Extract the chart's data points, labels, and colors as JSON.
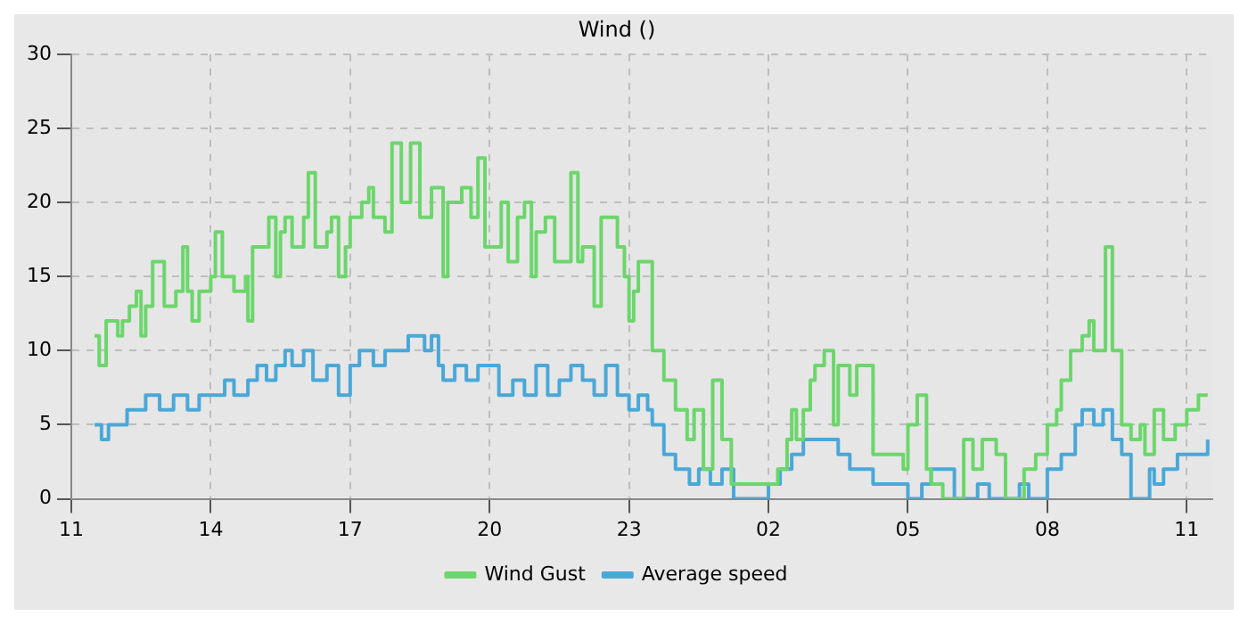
{
  "chart_data": {
    "type": "step",
    "title": "Wind ()",
    "xlim": [
      "--01-01T11:00",
      "--01-02T11:33"
    ],
    "xticks": [
      {
        "value": "--01-01T11:00",
        "label": "11"
      },
      {
        "value": "--01-01T14:00",
        "label": "14"
      },
      {
        "value": "--01-01T17:00",
        "label": "17"
      },
      {
        "value": "--01-01T20:00",
        "label": "20"
      },
      {
        "value": "--01-01T23:00",
        "label": "23"
      },
      {
        "value": "--01-02T02:00",
        "label": "02"
      },
      {
        "value": "--01-02T05:00",
        "label": "05"
      },
      {
        "value": "--01-02T08:00",
        "label": "08"
      },
      {
        "value": "--01-02T11:00",
        "label": "11"
      }
    ],
    "ylim": [
      0,
      30
    ],
    "yticks": [
      0,
      5,
      10,
      15,
      20,
      25,
      30
    ],
    "grid": true,
    "legend": "bottom",
    "marker": "none",
    "line_style": "solid",
    "series": [
      {
        "name": "Wind Gust",
        "color": "#6cd66c",
        "x": [
          "--01-01T11:30",
          "--01-01T11:36",
          "--01-01T11:45",
          "--01-01T12:00",
          "--01-01T12:06",
          "--01-01T12:15",
          "--01-01T12:24",
          "--01-01T12:30",
          "--01-01T12:36",
          "--01-01T12:45",
          "--01-01T13:00",
          "--01-01T13:15",
          "--01-01T13:24",
          "--01-01T13:30",
          "--01-01T13:36",
          "--01-01T13:45",
          "--01-01T14:00",
          "--01-01T14:06",
          "--01-01T14:15",
          "--01-01T14:30",
          "--01-01T14:45",
          "--01-01T14:48",
          "--01-01T14:54",
          "--01-01T15:06",
          "--01-01T15:15",
          "--01-01T15:24",
          "--01-01T15:30",
          "--01-01T15:36",
          "--01-01T15:45",
          "--01-01T16:00",
          "--01-01T16:06",
          "--01-01T16:15",
          "--01-01T16:30",
          "--01-01T16:36",
          "--01-01T16:45",
          "--01-01T16:54",
          "--01-01T17:00",
          "--01-01T17:15",
          "--01-01T17:24",
          "--01-01T17:30",
          "--01-01T17:45",
          "--01-01T17:54",
          "--01-01T18:06",
          "--01-01T18:18",
          "--01-01T18:30",
          "--01-01T18:45",
          "--01-01T19:00",
          "--01-01T19:06",
          "--01-01T19:24",
          "--01-01T19:36",
          "--01-01T19:45",
          "--01-01T19:54",
          "--01-01T20:00",
          "--01-01T20:15",
          "--01-01T20:24",
          "--01-01T20:36",
          "--01-01T20:45",
          "--01-01T20:54",
          "--01-01T21:00",
          "--01-01T21:12",
          "--01-01T21:24",
          "--01-01T21:36",
          "--01-01T21:45",
          "--01-01T21:54",
          "--01-01T22:00",
          "--01-01T22:06",
          "--01-01T22:15",
          "--01-01T22:24",
          "--01-01T22:36",
          "--01-01T22:45",
          "--01-01T22:54",
          "--01-01T23:00",
          "--01-01T23:06",
          "--01-01T23:12",
          "--01-01T23:30",
          "--01-01T23:36",
          "--01-01T23:45",
          "--01-02T00:00",
          "--01-02T00:15",
          "--01-02T00:24",
          "--01-02T00:36",
          "--01-02T00:48",
          "--01-02T01:00",
          "--01-02T01:12",
          "--01-02T01:30",
          "--01-02T02:00",
          "--01-02T02:12",
          "--01-02T02:24",
          "--01-02T02:30",
          "--01-02T02:36",
          "--01-02T02:45",
          "--01-02T02:54",
          "--01-02T03:00",
          "--01-02T03:12",
          "--01-02T03:24",
          "--01-02T03:30",
          "--01-02T03:45",
          "--01-02T03:54",
          "--01-02T04:00",
          "--01-02T04:15",
          "--01-02T04:30",
          "--01-02T04:54",
          "--01-02T05:00",
          "--01-02T05:12",
          "--01-02T05:24",
          "--01-02T05:30",
          "--01-02T05:45",
          "--01-02T06:12",
          "--01-02T06:24",
          "--01-02T06:36",
          "--01-02T06:54",
          "--01-02T07:06",
          "--01-02T07:30",
          "--01-02T07:45",
          "--01-02T08:00",
          "--01-02T08:12",
          "--01-02T08:18",
          "--01-02T08:30",
          "--01-02T08:45",
          "--01-02T08:54",
          "--01-02T09:00",
          "--01-02T09:15",
          "--01-02T09:24",
          "--01-02T09:36",
          "--01-02T09:48",
          "--01-02T10:00",
          "--01-02T10:06",
          "--01-02T10:18",
          "--01-02T10:30",
          "--01-02T10:45",
          "--01-02T11:00",
          "--01-02T11:15",
          "--01-02T11:27"
        ],
        "values": [
          11,
          9,
          12,
          11,
          12,
          13,
          14,
          11,
          13,
          16,
          13,
          14,
          17,
          14,
          12,
          14,
          15,
          18,
          15,
          14,
          15,
          12,
          17,
          17,
          19,
          15,
          18,
          19,
          17,
          19,
          22,
          17,
          18,
          19,
          15,
          17,
          19,
          20,
          21,
          19,
          18,
          24,
          20,
          24,
          19,
          21,
          15,
          20,
          21,
          19,
          23,
          17,
          17,
          20,
          16,
          19,
          20,
          15,
          18,
          19,
          16,
          16,
          22,
          16,
          17,
          17,
          13,
          19,
          19,
          17,
          15,
          12,
          14,
          16,
          10,
          10,
          8,
          6,
          4,
          6,
          2,
          8,
          4,
          1,
          1,
          1,
          2,
          4,
          6,
          4,
          6,
          8,
          9,
          10,
          5,
          9,
          7,
          9,
          9,
          3,
          3,
          2,
          5,
          7,
          2,
          1,
          0,
          4,
          2,
          4,
          3,
          0,
          2,
          3,
          5,
          6,
          8,
          10,
          11,
          12,
          10,
          17,
          10,
          5,
          4,
          5,
          3,
          6,
          4,
          5,
          6,
          7,
          7
        ]
      },
      {
        "name": "Average speed",
        "color": "#4aa8d8",
        "x": [
          "--01-01T11:30",
          "--01-01T11:39",
          "--01-01T11:48",
          "--01-01T12:06",
          "--01-01T12:12",
          "--01-01T12:36",
          "--01-01T12:54",
          "--01-01T13:12",
          "--01-01T13:30",
          "--01-01T13:45",
          "--01-01T14:12",
          "--01-01T14:18",
          "--01-01T14:30",
          "--01-01T14:48",
          "--01-01T15:00",
          "--01-01T15:12",
          "--01-01T15:24",
          "--01-01T15:36",
          "--01-01T15:45",
          "--01-01T16:00",
          "--01-01T16:12",
          "--01-01T16:30",
          "--01-01T16:45",
          "--01-01T17:00",
          "--01-01T17:12",
          "--01-01T17:30",
          "--01-01T17:45",
          "--01-01T18:00",
          "--01-01T18:15",
          "--01-01T18:36",
          "--01-01T18:45",
          "--01-01T18:54",
          "--01-01T19:00",
          "--01-01T19:15",
          "--01-01T19:30",
          "--01-01T19:45",
          "--01-01T20:00",
          "--01-01T20:12",
          "--01-01T20:30",
          "--01-01T20:45",
          "--01-01T21:00",
          "--01-01T21:15",
          "--01-01T21:30",
          "--01-01T21:45",
          "--01-01T22:00",
          "--01-01T22:15",
          "--01-01T22:30",
          "--01-01T22:45",
          "--01-01T23:00",
          "--01-01T23:12",
          "--01-01T23:24",
          "--01-01T23:30",
          "--01-01T23:45",
          "--01-02T00:00",
          "--01-02T00:18",
          "--01-02T00:30",
          "--01-02T00:45",
          "--01-02T01:00",
          "--01-02T01:15",
          "--01-02T01:45",
          "--01-02T02:00",
          "--01-02T02:15",
          "--01-02T02:30",
          "--01-02T02:45",
          "--01-02T03:15",
          "--01-02T03:30",
          "--01-02T03:45",
          "--01-02T04:00",
          "--01-02T04:15",
          "--01-02T04:30",
          "--01-02T05:00",
          "--01-02T05:18",
          "--01-02T05:30",
          "--01-02T05:45",
          "--01-02T06:00",
          "--01-02T06:30",
          "--01-02T06:45",
          "--01-02T07:12",
          "--01-02T07:24",
          "--01-02T07:36",
          "--01-02T08:00",
          "--01-02T08:18",
          "--01-02T08:36",
          "--01-02T08:45",
          "--01-02T09:00",
          "--01-02T09:12",
          "--01-02T09:24",
          "--01-02T09:36",
          "--01-02T09:48",
          "--01-02T10:12",
          "--01-02T10:18",
          "--01-02T10:30",
          "--01-02T10:42",
          "--01-02T10:48",
          "--01-02T11:18",
          "--01-02T11:27"
        ],
        "values": [
          5,
          4,
          5,
          5,
          6,
          7,
          6,
          7,
          6,
          7,
          7,
          8,
          7,
          8,
          9,
          8,
          9,
          10,
          9,
          10,
          8,
          9,
          7,
          9,
          10,
          9,
          10,
          10,
          11,
          10,
          11,
          9,
          8,
          9,
          8,
          9,
          9,
          7,
          8,
          7,
          9,
          7,
          8,
          9,
          8,
          7,
          9,
          7,
          6,
          7,
          6,
          5,
          3,
          2,
          1,
          2,
          1,
          2,
          0,
          0,
          1,
          2,
          3,
          4,
          4,
          3,
          2,
          2,
          1,
          1,
          0,
          1,
          2,
          2,
          0,
          1,
          0,
          0,
          1,
          0,
          2,
          3,
          5,
          6,
          5,
          6,
          4,
          3,
          0,
          2,
          1,
          2,
          2,
          3,
          3,
          4
        ]
      }
    ]
  }
}
